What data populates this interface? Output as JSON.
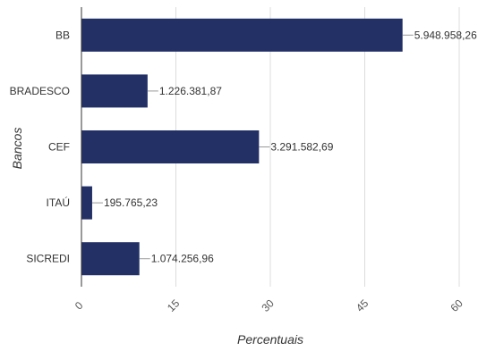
{
  "chart_data": {
    "type": "bar",
    "orientation": "horizontal",
    "categories": [
      "BB",
      "BRADESCO",
      "CEF",
      "ITAÚ",
      "SICREDI"
    ],
    "values": [
      51.0,
      10.5,
      28.2,
      1.7,
      9.2
    ],
    "data_labels": [
      "5.948.958,26",
      "1.226.381,87",
      "3.291.582,69",
      "195.765,23",
      "1.074.256,96"
    ],
    "xlabel": "Percentuais",
    "ylabel": "Bancos",
    "xlim": [
      0,
      60
    ],
    "x_ticks": [
      "0",
      "15",
      "30",
      "45",
      "60"
    ],
    "x_tick_values": [
      0,
      15,
      30,
      45,
      60
    ],
    "grid": true,
    "legend": "none",
    "bar_color": "#233066",
    "grid_color": "#dcdcdc",
    "axis_color": "#333333",
    "text_color": "#333333"
  }
}
